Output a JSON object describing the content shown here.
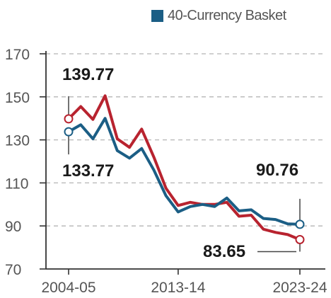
{
  "chart_data": {
    "type": "line",
    "title": "",
    "xlabel": "",
    "ylabel": "",
    "ylim": [
      70,
      170
    ],
    "y_ticks": [
      70,
      90,
      110,
      130,
      150,
      170
    ],
    "x_tick_labels": [
      "2004-05",
      "2013-14",
      "2023-24"
    ],
    "grid": "horizontal dashed",
    "legend": {
      "placement": "top-right",
      "entries": [
        "40-Currency Basket"
      ]
    },
    "x": [
      "2004-05",
      "2005-06",
      "2006-07",
      "2007-08",
      "2008-09",
      "2009-10",
      "2010-11",
      "2011-12",
      "2012-13",
      "2013-14",
      "2014-15",
      "2015-16",
      "2016-17",
      "2017-18",
      "2018-19",
      "2019-20",
      "2020-21",
      "2021-22",
      "2022-23",
      "2023-24"
    ],
    "series": [
      {
        "name": "40-Currency Basket",
        "color": "#1b5e85",
        "values": [
          133.77,
          137,
          130.5,
          140,
          125,
          121.5,
          126,
          116,
          104,
          96.5,
          99,
          100,
          99,
          103,
          97,
          97.5,
          93.5,
          93,
          91,
          90.76
        ]
      },
      {
        "name": "",
        "color": "#b8232f",
        "values": [
          139.77,
          145.5,
          139.5,
          150.5,
          130.5,
          126.5,
          135,
          122,
          107.5,
          99.5,
          101,
          100,
          100,
          101,
          94.5,
          95,
          88.5,
          87,
          86,
          83.65
        ]
      }
    ],
    "annotations": [
      {
        "label": "139.77",
        "series": 1,
        "point": 0
      },
      {
        "label": "133.77",
        "series": 0,
        "point": 0
      },
      {
        "label": "90.76",
        "series": 0,
        "point": 19
      },
      {
        "label": "83.65",
        "series": 1,
        "point": 19
      }
    ]
  }
}
